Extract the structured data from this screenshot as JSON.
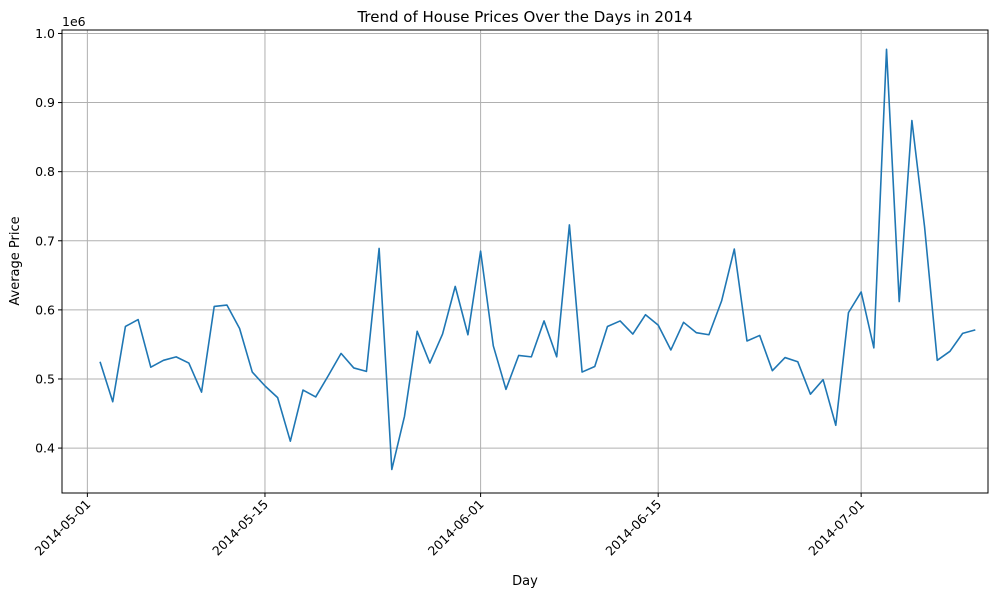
{
  "chart_data": {
    "type": "line",
    "title": "Trend of House Prices Over the Days in 2014",
    "xlabel": "Day",
    "ylabel": "Average Price",
    "offset_label": "1e6",
    "grid": true,
    "x_axis_type": "date",
    "xlim": [
      "2014-04-29",
      "2014-07-11"
    ],
    "ylim": [
      0.335,
      1.005
    ],
    "y_scale_multiplier": 1000000,
    "x_ticks": [
      "2014-05-01",
      "2014-05-15",
      "2014-06-01",
      "2014-06-15",
      "2014-07-01"
    ],
    "y_ticks": [
      0.4,
      0.5,
      0.6,
      0.7,
      0.8,
      0.9,
      1.0
    ],
    "y_tick_labels": [
      "0.4",
      "0.5",
      "0.6",
      "0.7",
      "0.8",
      "0.9",
      "1.0"
    ],
    "series": [
      {
        "color": "#1f77b4",
        "x": [
          "2014-05-02",
          "2014-05-03",
          "2014-05-04",
          "2014-05-05",
          "2014-05-06",
          "2014-05-07",
          "2014-05-08",
          "2014-05-09",
          "2014-05-10",
          "2014-05-11",
          "2014-05-12",
          "2014-05-13",
          "2014-05-14",
          "2014-05-15",
          "2014-05-16",
          "2014-05-17",
          "2014-05-18",
          "2014-05-19",
          "2014-05-20",
          "2014-05-21",
          "2014-05-22",
          "2014-05-23",
          "2014-05-24",
          "2014-05-25",
          "2014-05-26",
          "2014-05-27",
          "2014-05-28",
          "2014-05-29",
          "2014-05-30",
          "2014-05-31",
          "2014-06-01",
          "2014-06-02",
          "2014-06-03",
          "2014-06-04",
          "2014-06-05",
          "2014-06-06",
          "2014-06-07",
          "2014-06-08",
          "2014-06-09",
          "2014-06-10",
          "2014-06-11",
          "2014-06-12",
          "2014-06-13",
          "2014-06-14",
          "2014-06-15",
          "2014-06-16",
          "2014-06-17",
          "2014-06-18",
          "2014-06-19",
          "2014-06-20",
          "2014-06-21",
          "2014-06-22",
          "2014-06-23",
          "2014-06-24",
          "2014-06-25",
          "2014-06-26",
          "2014-06-27",
          "2014-06-28",
          "2014-06-29",
          "2014-06-30",
          "2014-07-01",
          "2014-07-02",
          "2014-07-03",
          "2014-07-04",
          "2014-07-05",
          "2014-07-06",
          "2014-07-07",
          "2014-07-08",
          "2014-07-09",
          "2014-07-10"
        ],
        "values": [
          0.525,
          0.467,
          0.576,
          0.586,
          0.517,
          0.527,
          0.532,
          0.523,
          0.481,
          0.605,
          0.607,
          0.573,
          0.51,
          0.49,
          0.473,
          0.41,
          0.484,
          0.474,
          0.505,
          0.537,
          0.516,
          0.511,
          0.689,
          0.369,
          0.446,
          0.569,
          0.523,
          0.565,
          0.634,
          0.564,
          0.685,
          0.548,
          0.485,
          0.534,
          0.532,
          0.584,
          0.532,
          0.723,
          0.51,
          0.518,
          0.576,
          0.584,
          0.565,
          0.593,
          0.578,
          0.542,
          0.582,
          0.567,
          0.564,
          0.613,
          0.688,
          0.555,
          0.563,
          0.512,
          0.531,
          0.525,
          0.478,
          0.499,
          0.433,
          0.596,
          0.626,
          0.545,
          0.977,
          0.612,
          0.874,
          0.72,
          0.527,
          0.54,
          0.566,
          0.571
        ]
      }
    ]
  }
}
